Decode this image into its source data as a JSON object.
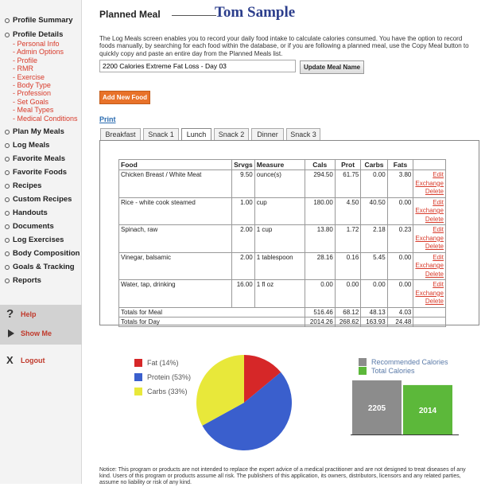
{
  "sidebar": {
    "nav": {
      "profile_summary": "Profile Summary",
      "profile_details": "Profile Details",
      "plan_my_meals": "Plan My Meals",
      "log_meals": "Log Meals",
      "favorite_meals": "Favorite Meals",
      "favorite_foods": "Favorite Foods",
      "recipes": "Recipes",
      "custom_recipes": "Custom Recipes",
      "handouts": "Handouts",
      "documents": "Documents",
      "log_exercises": "Log Exercises",
      "body_composition": "Body Composition",
      "goals_tracking": "Goals & Tracking",
      "reports": "Reports"
    },
    "sub": [
      "- Personal Info",
      "- Admin Options",
      "- Profile",
      "- RMR",
      "- Exercise",
      "- Body Type",
      "- Profession",
      "- Set Goals",
      "- Meal Types",
      "- Medical Conditions"
    ],
    "help": "Help",
    "show_me": "Show Me",
    "logout": "Logout"
  },
  "header": {
    "title": "Planned Meal",
    "client": "Tom Sample"
  },
  "description": "The Log Meals screen enables you to record your daily food intake to calculate calories consumed. You have the option to record foods manually, by searching for each food within the database, or if you are following a planned meal, use the Copy Meal button to quickly copy and paste an entire day from the Planned Meals list.",
  "meal_name": {
    "value": "2200 Calories Extreme Fat Loss - Day 03",
    "button": "Update Meal Name"
  },
  "add_food": "Add New Food",
  "print": "Print",
  "tabs": [
    "Breakfast",
    "Snack 1",
    "Lunch",
    "Snack 2",
    "Dinner",
    "Snack 3"
  ],
  "table": {
    "headers": [
      "Food",
      "Srvgs",
      "Measure",
      "Cals",
      "Prot",
      "Carbs",
      "Fats"
    ],
    "rows": [
      {
        "food": "Chicken Breast / White Meat",
        "srvgs": "9.50",
        "measure": "ounce(s)",
        "cals": "294.50",
        "prot": "61.75",
        "carbs": "0.00",
        "fats": "3.80"
      },
      {
        "food": "Rice - white cook steamed",
        "srvgs": "1.00",
        "measure": "cup",
        "cals": "180.00",
        "prot": "4.50",
        "carbs": "40.50",
        "fats": "0.00"
      },
      {
        "food": "Spinach, raw",
        "srvgs": "2.00",
        "measure": "1 cup",
        "cals": "13.80",
        "prot": "1.72",
        "carbs": "2.18",
        "fats": "0.23"
      },
      {
        "food": "Vinegar, balsamic",
        "srvgs": "2.00",
        "measure": "1 tablespoon",
        "cals": "28.16",
        "prot": "0.16",
        "carbs": "5.45",
        "fats": "0.00"
      },
      {
        "food": "Water, tap, drinking",
        "srvgs": "16.00",
        "measure": "1 fl oz",
        "cals": "0.00",
        "prot": "0.00",
        "carbs": "0.00",
        "fats": "0.00"
      }
    ],
    "actions": [
      "Edit",
      "Exchange",
      "Delete"
    ],
    "totals_meal": {
      "label": "Totals for Meal",
      "cals": "516.46",
      "prot": "68.12",
      "carbs": "48.13",
      "fats": "4.03"
    },
    "totals_day": {
      "label": "Totals for Day",
      "cals": "2014.26",
      "prot": "268.62",
      "carbs": "163.93",
      "fats": "24.48"
    }
  },
  "chart_data": [
    {
      "type": "pie",
      "slices": [
        {
          "name": "Fat (14%)",
          "value": 14,
          "color": "#d62728"
        },
        {
          "name": "Protein (53%)",
          "value": 53,
          "color": "#3a5fcd"
        },
        {
          "name": "Carbs (33%)",
          "value": 33,
          "color": "#e8e83a"
        }
      ]
    },
    {
      "type": "bar",
      "series": [
        {
          "name": "Recommended Calories",
          "values": [
            2205
          ],
          "color": "#8c8c8c"
        },
        {
          "name": "Total Calories",
          "values": [
            2014
          ],
          "color": "#5cb83a"
        }
      ],
      "data_labels": [
        "2205",
        "2014"
      ]
    }
  ],
  "notice": "Notice: This program or products are not intended to replace the expert advice of a medical practitioner and are not designed to treat diseases of any kind. Users of this program or products assume all risk. The publishers of this application, its owners, distributors, licensors and any related parties, assume no liability or risk of any kind."
}
